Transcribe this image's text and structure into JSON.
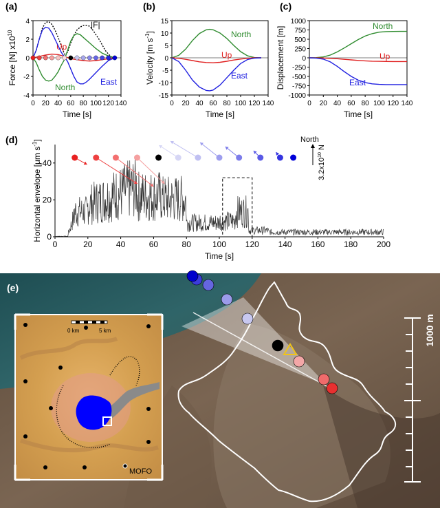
{
  "panels": {
    "a": "(a)",
    "b": "(b)",
    "c": "(c)",
    "d": "(d)",
    "e": "(e)"
  },
  "chart_data": [
    {
      "id": "a",
      "type": "line",
      "xlabel": "Time [s]",
      "ylabel": "Force [N] x10",
      "ylabel_sup": "10",
      "xlim": [
        0,
        140
      ],
      "ylim": [
        -4,
        4
      ],
      "xticks": [
        0,
        20,
        40,
        60,
        80,
        100,
        120,
        140
      ],
      "yticks": [
        -4,
        -2,
        0,
        2,
        4
      ],
      "series": [
        {
          "name": "|F|",
          "color": "#000000",
          "dashed": true,
          "x": [
            0,
            5,
            10,
            15,
            20,
            25,
            30,
            35,
            40,
            45,
            50,
            55,
            60,
            65,
            70,
            75,
            80,
            85,
            90,
            95,
            100,
            105,
            110,
            115,
            120,
            125,
            130
          ],
          "y": [
            0,
            0.8,
            2.0,
            3.2,
            3.8,
            3.9,
            3.6,
            3.0,
            2.2,
            1.3,
            0.4,
            0.6,
            1.6,
            2.4,
            3.0,
            3.3,
            3.5,
            3.5,
            3.4,
            3.0,
            2.5,
            2.0,
            1.4,
            0.8,
            0.4,
            0.1,
            0
          ]
        },
        {
          "name": "Up",
          "color": "#e02020",
          "x": [
            0,
            10,
            20,
            30,
            40,
            50,
            60,
            70,
            80,
            90,
            100,
            110,
            120,
            130
          ],
          "y": [
            0,
            0.15,
            0.3,
            0.4,
            0.35,
            0.15,
            -0.1,
            -0.2,
            -0.3,
            -0.35,
            -0.3,
            -0.2,
            -0.1,
            0
          ]
        },
        {
          "name": "North",
          "color": "#2e8b2e",
          "x": [
            0,
            5,
            10,
            15,
            20,
            25,
            30,
            35,
            40,
            45,
            50,
            55,
            60,
            65,
            70,
            75,
            80,
            90,
            100,
            110,
            120,
            130
          ],
          "y": [
            0,
            -0.5,
            -1.3,
            -2.0,
            -2.4,
            -2.5,
            -2.4,
            -2.0,
            -1.5,
            -0.8,
            -0.2,
            0.8,
            1.8,
            2.4,
            2.6,
            2.5,
            2.2,
            1.6,
            1.0,
            0.5,
            0.2,
            0
          ]
        },
        {
          "name": "East",
          "color": "#2020e0",
          "x": [
            0,
            5,
            10,
            15,
            20,
            25,
            30,
            35,
            40,
            45,
            50,
            55,
            60,
            65,
            70,
            75,
            80,
            85,
            90,
            100,
            110,
            120,
            130
          ],
          "y": [
            0,
            0.8,
            2.0,
            3.0,
            3.3,
            3.2,
            2.7,
            2.0,
            1.3,
            0.6,
            0.1,
            -0.4,
            -1.2,
            -2.0,
            -2.6,
            -2.8,
            -2.8,
            -2.6,
            -2.3,
            -1.6,
            -0.9,
            -0.3,
            0
          ]
        }
      ],
      "time_markers": {
        "x": [
          0,
          10,
          20,
          30,
          40,
          50,
          60,
          70,
          80,
          90,
          100,
          110,
          120,
          130
        ],
        "colors": [
          "#e82020",
          "#ee4040",
          "#f37070",
          "#f5a0a0",
          "#f7c4c4",
          "#f9dddd",
          "#000000",
          "#c8c8f2",
          "#a8a8ee",
          "#8888ea",
          "#6666e6",
          "#4444e2",
          "#2222de",
          "#0000d8"
        ]
      }
    },
    {
      "id": "b",
      "type": "line",
      "xlabel": "Time [s]",
      "ylabel": "Velocity [m s",
      "ylabel_sup": "-1",
      "xlim": [
        0,
        140
      ],
      "ylim": [
        -15,
        15
      ],
      "xticks": [
        0,
        20,
        40,
        60,
        80,
        100,
        120,
        140
      ],
      "yticks": [
        -15,
        -10,
        -5,
        0,
        5,
        10,
        15
      ],
      "series": [
        {
          "name": "North",
          "color": "#2e8b2e",
          "x": [
            0,
            10,
            20,
            30,
            40,
            50,
            55,
            60,
            70,
            80,
            90,
            100,
            110,
            120,
            130
          ],
          "y": [
            0,
            1.0,
            3.5,
            7.0,
            9.8,
            11.3,
            11.5,
            11.3,
            10.0,
            7.8,
            5.0,
            2.5,
            0.8,
            0.1,
            0
          ]
        },
        {
          "name": "Up",
          "color": "#e02020",
          "x": [
            0,
            10,
            20,
            30,
            40,
            50,
            60,
            70,
            80,
            90,
            100,
            110,
            120,
            130
          ],
          "y": [
            0,
            -0.2,
            -0.6,
            -1.1,
            -1.6,
            -1.9,
            -2.0,
            -1.8,
            -1.4,
            -0.9,
            -0.5,
            -0.2,
            0,
            0
          ]
        },
        {
          "name": "East",
          "color": "#2020e0",
          "x": [
            0,
            10,
            20,
            30,
            40,
            50,
            55,
            60,
            70,
            80,
            90,
            100,
            110,
            120,
            130
          ],
          "y": [
            0,
            -1.5,
            -5.0,
            -9.0,
            -11.8,
            -13.2,
            -13.3,
            -13.0,
            -11.0,
            -8.0,
            -5.0,
            -2.3,
            -0.7,
            -0.1,
            0
          ]
        }
      ]
    },
    {
      "id": "c",
      "type": "line",
      "xlabel": "Time [s]",
      "ylabel": "Displacement [m]",
      "xlim": [
        0,
        140
      ],
      "ylim": [
        -1000,
        1000
      ],
      "xticks": [
        0,
        20,
        40,
        60,
        80,
        100,
        120,
        140
      ],
      "yticks": [
        -1000,
        -750,
        -500,
        -250,
        0,
        250,
        500,
        750,
        1000
      ],
      "series": [
        {
          "name": "North",
          "color": "#2e8b2e",
          "x": [
            0,
            10,
            20,
            30,
            40,
            50,
            60,
            70,
            80,
            90,
            100,
            110,
            120,
            130,
            140
          ],
          "y": [
            0,
            5,
            25,
            75,
            160,
            265,
            380,
            490,
            585,
            650,
            690,
            705,
            710,
            712,
            712
          ]
        },
        {
          "name": "Up",
          "color": "#e02020",
          "x": [
            0,
            10,
            20,
            30,
            40,
            50,
            60,
            70,
            80,
            90,
            100,
            110,
            120,
            130,
            140
          ],
          "y": [
            0,
            -2,
            -6,
            -14,
            -25,
            -40,
            -55,
            -70,
            -82,
            -90,
            -95,
            -98,
            -100,
            -100,
            -100
          ]
        },
        {
          "name": "East",
          "color": "#2020e0",
          "x": [
            0,
            10,
            20,
            30,
            40,
            50,
            60,
            70,
            80,
            90,
            100,
            110,
            120,
            130,
            140
          ],
          "y": [
            0,
            -8,
            -35,
            -110,
            -230,
            -370,
            -500,
            -600,
            -665,
            -700,
            -715,
            -720,
            -720,
            -720,
            -720
          ]
        }
      ]
    },
    {
      "id": "d",
      "type": "line",
      "xlabel": "Time [s]",
      "ylabel": "Horizontal envelope [μm s",
      "ylabel_sup": "-1",
      "xlim": [
        0,
        200
      ],
      "ylim": [
        0,
        50
      ],
      "xticks": [
        0,
        20,
        40,
        60,
        80,
        100,
        120,
        140,
        160,
        180,
        200
      ],
      "yticks": [
        0,
        20,
        40
      ],
      "north_label": "North",
      "scale_label": "3.2x10",
      "scale_sup": "10",
      "scale_unit": " N",
      "dashed_box": {
        "x": [
          102,
          120
        ],
        "y": [
          0,
          32
        ]
      },
      "arrows": {
        "x": [
          12,
          25,
          37,
          50,
          63,
          75,
          87,
          100,
          112,
          125,
          137,
          145
        ],
        "colors": [
          "#e82020",
          "#ee4040",
          "#f37070",
          "#f5a0a0",
          "#000000",
          "#d6d6f5",
          "#c0c0f2",
          "#9e9eee",
          "#7c7cea",
          "#5a5ae6",
          "#3434e0",
          "#0000d8"
        ]
      }
    }
  ],
  "map": {
    "scale_bar": "1000 m",
    "inset": {
      "scale_start": "0 km",
      "scale_end": "5 km",
      "station": "MOFO"
    }
  }
}
